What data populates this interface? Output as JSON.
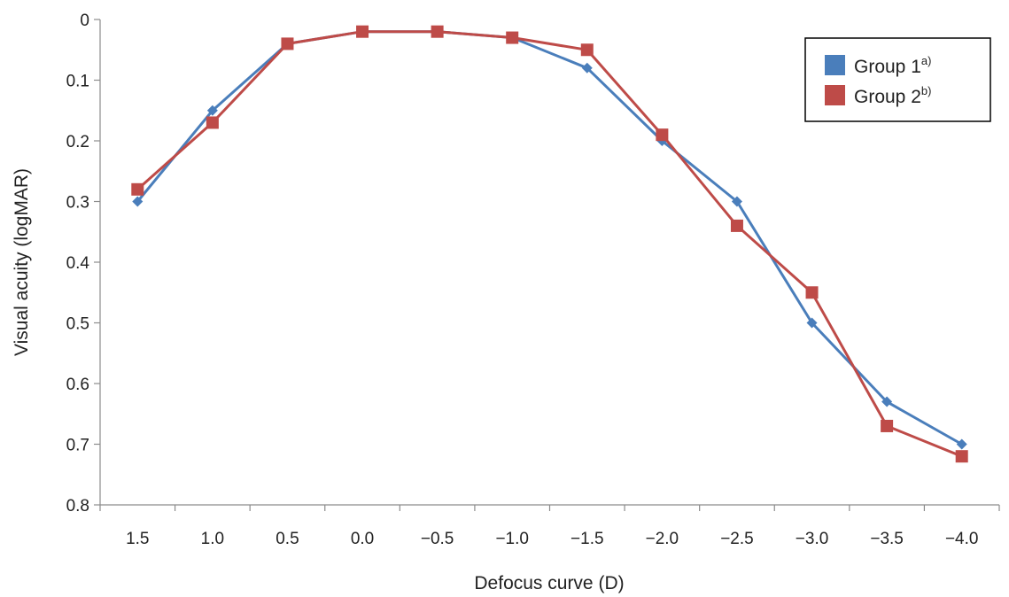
{
  "chart_data": {
    "type": "line",
    "title": "",
    "xlabel": "Defocus curve (D)",
    "ylabel": "Visual acuity (logMAR)",
    "categories": [
      "1.5",
      "1.0",
      "0.5",
      "0.0",
      "−0.5",
      "−1.0",
      "−1.5",
      "−2.0",
      "−2.5",
      "−3.0",
      "−3.5",
      "−4.0"
    ],
    "y_ticks": [
      "0",
      "0.1",
      "0.2",
      "0.3",
      "0.4",
      "0.5",
      "0.6",
      "0.7",
      "0.8"
    ],
    "ylim": [
      0,
      0.8
    ],
    "y_axis_inverted": true,
    "grid": false,
    "legend_position": "top-right",
    "series": [
      {
        "name": "Group 1",
        "superscript": "a)",
        "color": "#4a7ebb",
        "marker": "diamond",
        "values": [
          0.3,
          0.15,
          0.04,
          0.02,
          0.02,
          0.03,
          0.08,
          0.2,
          0.3,
          0.5,
          0.63,
          0.7
        ]
      },
      {
        "name": "Group 2",
        "superscript": "b)",
        "color": "#be4b48",
        "marker": "square",
        "values": [
          0.28,
          0.17,
          0.04,
          0.02,
          0.02,
          0.03,
          0.05,
          0.19,
          0.34,
          0.45,
          0.67,
          0.72
        ]
      }
    ]
  }
}
